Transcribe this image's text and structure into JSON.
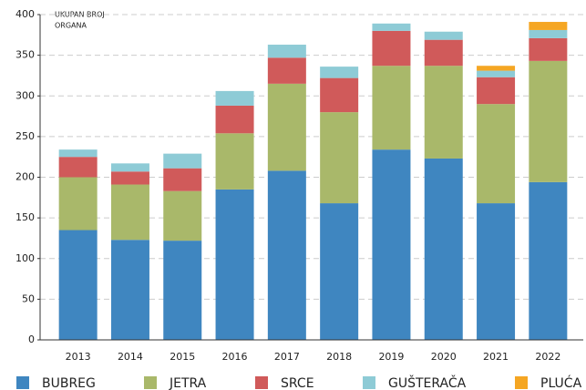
{
  "chart_data": {
    "type": "stacked_bar",
    "y_label": [
      "UKUPAN BROJ",
      "ORGANA"
    ],
    "categories": [
      "2013",
      "2014",
      "2015",
      "2016",
      "2017",
      "2018",
      "2019",
      "2020",
      "2021",
      "2022"
    ],
    "series": [
      {
        "name": "BUBREG",
        "color": "#3f86c0",
        "values": [
          135,
          123,
          122,
          185,
          208,
          168,
          234,
          223,
          168,
          194
        ]
      },
      {
        "name": "JETRA",
        "color": "#a9b86a",
        "values": [
          65,
          68,
          61,
          69,
          107,
          112,
          103,
          114,
          122,
          149
        ]
      },
      {
        "name": "SRCE",
        "color": "#d05a5a",
        "values": [
          25,
          16,
          28,
          34,
          32,
          42,
          43,
          32,
          33,
          28
        ]
      },
      {
        "name": "GUŠTERAČA",
        "color": "#8ecbd6",
        "values": [
          9,
          10,
          18,
          18,
          16,
          14,
          9,
          10,
          8,
          10
        ]
      },
      {
        "name": "PLUĆA",
        "color": "#f5a623",
        "values": [
          0,
          0,
          0,
          0,
          0,
          0,
          0,
          0,
          6,
          10
        ]
      }
    ],
    "ylim": [
      0,
      400
    ],
    "yticks": [
      0,
      50,
      100,
      150,
      200,
      250,
      300,
      350,
      400
    ],
    "grid": true
  }
}
